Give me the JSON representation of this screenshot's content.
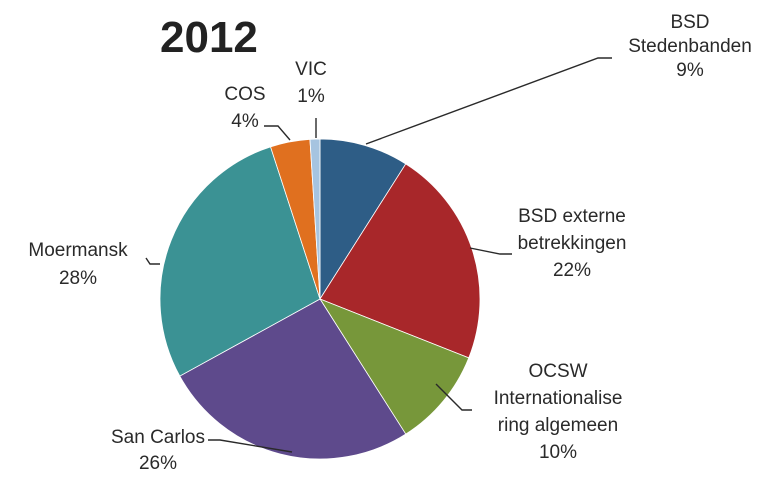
{
  "chart_data": {
    "type": "pie",
    "title": "2012",
    "slices": [
      {
        "label": "BSD Stedenbanden",
        "value": 9,
        "value_label": "9%",
        "color": "#2e5d86"
      },
      {
        "label": "BSD externe betrekkingen",
        "value": 22,
        "value_label": "22%",
        "color": "#a8272a"
      },
      {
        "label": "OCSW Internationalisering algemeen",
        "value": 10,
        "value_label": "10%",
        "color": "#77973a"
      },
      {
        "label": "San Carlos",
        "value": 26,
        "value_label": "26%",
        "color": "#5e4a8c"
      },
      {
        "label": "Moermansk",
        "value": 28,
        "value_label": "28%",
        "color": "#3b9294"
      },
      {
        "label": "COS",
        "value": 4,
        "value_label": "4%",
        "color": "#e0701f"
      },
      {
        "label": "VIC",
        "value": 1,
        "value_label": "1%",
        "color": "#a6c4e0"
      }
    ],
    "label_lines": [
      [
        "BSD",
        "Stedenbanden",
        "9%"
      ],
      [
        "BSD externe",
        "betrekkingen",
        "22%"
      ],
      [
        "OCSW",
        "Internationalise",
        "ring algemeen",
        "10%"
      ],
      [
        "San Carlos",
        "26%"
      ],
      [
        "Moermansk",
        "28%"
      ],
      [
        "COS",
        "4%"
      ],
      [
        "VIC",
        "1%"
      ]
    ]
  }
}
